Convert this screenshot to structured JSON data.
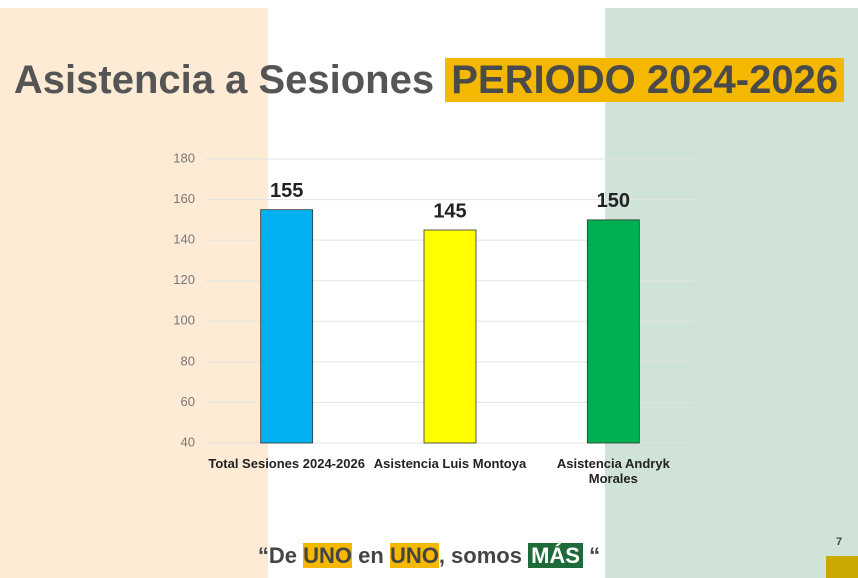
{
  "chart_data": {
    "type": "bar",
    "title_parts": [
      "Asistencia a Sesiones",
      "PERIODO 2024-2026"
    ],
    "categories": [
      "Total Sesiones 2024-2026",
      "Asistencia Luis Montoya",
      "Asistencia Andryk Morales"
    ],
    "values": [
      155,
      145,
      150
    ],
    "colors": [
      "#00b0f0",
      "#ffff00",
      "#00b050"
    ],
    "ylim": [
      40,
      180
    ],
    "yticks": [
      40,
      60,
      80,
      100,
      120,
      140,
      160,
      180
    ],
    "grid": true
  },
  "footer": {
    "parts": [
      "“De ",
      "UNO",
      " en ",
      "UNO",
      ", somos ",
      "MÁS",
      " “"
    ]
  },
  "page_number": "7"
}
